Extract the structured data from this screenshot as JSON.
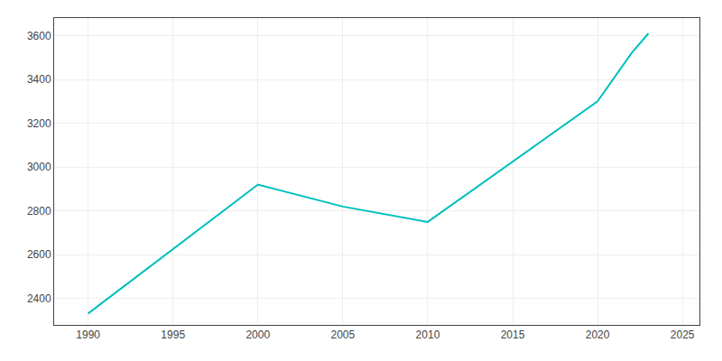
{
  "chart_data": {
    "type": "line",
    "x": [
      1990,
      2000,
      2005,
      2010,
      2020,
      2022,
      2023
    ],
    "values": [
      2332,
      2920,
      2820,
      2750,
      3300,
      3520,
      3610
    ],
    "color": "#00BFBF",
    "xlim": [
      1988,
      2026
    ],
    "ylim": [
      2280,
      3680
    ],
    "xticks": [
      1990,
      1995,
      2000,
      2005,
      2010,
      2015,
      2020,
      2025
    ],
    "yticks": [
      2400,
      2600,
      2800,
      3000,
      3200,
      3400,
      3600
    ],
    "grid": true
  }
}
